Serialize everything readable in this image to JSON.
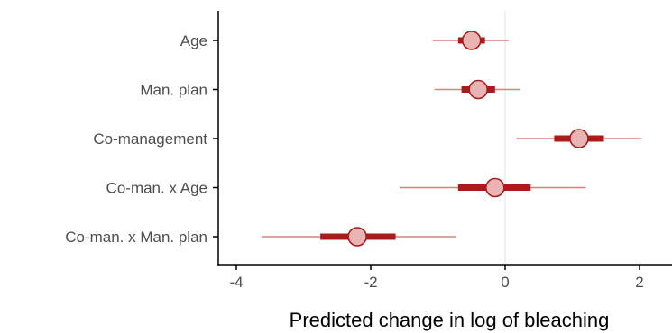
{
  "chart_data": {
    "type": "interval",
    "title": "",
    "xlabel": "Predicted change in log of bleaching",
    "ylabel": "",
    "xlim": [
      -4.2,
      2.5
    ],
    "xticks": [
      -4,
      -2,
      0,
      2
    ],
    "xtick_labels": [
      "-4",
      "-2",
      "0",
      "2"
    ],
    "reference_line": 0,
    "grid": false,
    "legend": "none",
    "categories": [
      "Age",
      "Man. plan",
      "Co-management",
      "Co-man. x Age",
      "Co-man. x Man. plan"
    ],
    "series": [
      {
        "estimate": [
          -0.5,
          -0.4,
          1.1,
          -0.15,
          -2.2
        ],
        "inner_low": [
          -0.7,
          -0.65,
          0.73,
          -0.7,
          -2.75
        ],
        "inner_high": [
          -0.3,
          -0.15,
          1.47,
          0.38,
          -1.63
        ],
        "outer_low": [
          -1.08,
          -1.05,
          0.17,
          -1.57,
          -3.62
        ],
        "outer_high": [
          0.05,
          0.22,
          2.03,
          1.2,
          -0.73
        ]
      }
    ],
    "colors": {
      "outer_interval": "#d98080",
      "inner_interval": "#a81c1c",
      "point_fill": "#e8b4b4",
      "point_stroke": "#a81c1c",
      "reference_line": "#e6e6e6",
      "axis": "#000000"
    }
  }
}
